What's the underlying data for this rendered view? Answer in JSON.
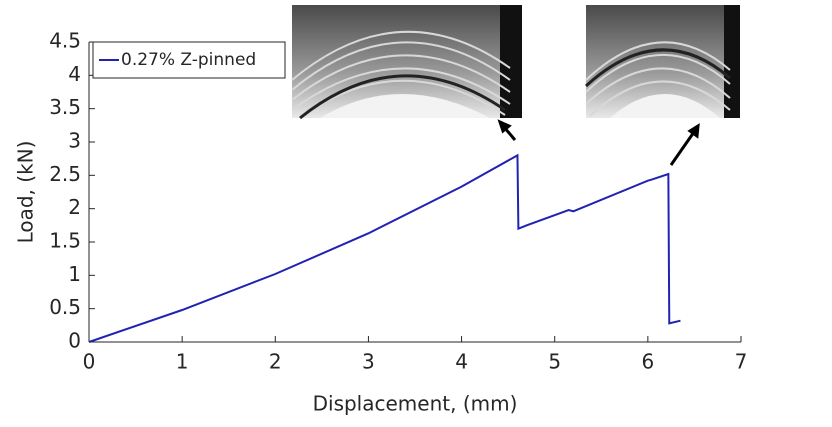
{
  "chart_data": {
    "type": "line",
    "x_label": "Displacement, (mm)",
    "y_label": "Load, (kN)",
    "x": [
      0,
      1,
      2,
      3,
      4,
      4.6,
      4.61,
      4.7,
      5.15,
      5.2,
      6,
      6.05,
      6.22,
      6.23,
      6.35
    ],
    "series": [
      {
        "name": "0.27% Z-pinned",
        "color": "#2222b2",
        "values": [
          0,
          0.48,
          1.02,
          1.63,
          2.33,
          2.8,
          1.7,
          1.75,
          1.98,
          1.96,
          2.42,
          2.44,
          2.52,
          0.28,
          0.32
        ]
      }
    ],
    "xlim": [
      0,
      7
    ],
    "xticks": [
      0,
      1,
      2,
      3,
      4,
      5,
      6,
      7
    ],
    "ylim": [
      0,
      4.5
    ],
    "yticks": [
      0,
      0.5,
      1,
      1.5,
      2,
      2.5,
      3,
      3.5,
      4,
      4.5
    ],
    "grid": false,
    "legend": "upper-left"
  }
}
